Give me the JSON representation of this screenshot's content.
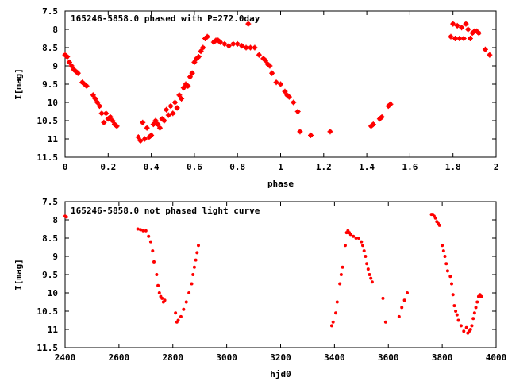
{
  "chart_data": [
    {
      "type": "scatter",
      "title": "165246-5858.0 phased with P=272.0day",
      "xlabel": "phase",
      "ylabel": "I[mag]",
      "xlim": [
        0,
        2
      ],
      "ylim": [
        11.5,
        7.5
      ],
      "y_inverted": true,
      "x_ticks": [
        0,
        0.2,
        0.4,
        0.6,
        0.8,
        1,
        1.2,
        1.4,
        1.6,
        1.8,
        2
      ],
      "y_ticks": [
        7.5,
        8,
        8.5,
        9,
        9.5,
        10,
        10.5,
        11,
        11.5
      ],
      "grid": false,
      "marker_color": "#ff0000",
      "marker": "filled-circle-cross",
      "series": [
        {
          "x": [
            0.0,
            0.01,
            0.02,
            0.03,
            0.04,
            0.05,
            0.06,
            0.08,
            0.09,
            0.1,
            0.13,
            0.14,
            0.15,
            0.16,
            0.17,
            0.18,
            0.19,
            0.2,
            0.21,
            0.22,
            0.23,
            0.24,
            0.34,
            0.35,
            0.36,
            0.37,
            0.38,
            0.39,
            0.4,
            0.41,
            0.42,
            0.43,
            0.44,
            0.45,
            0.46,
            0.47,
            0.48,
            0.49,
            0.5,
            0.51,
            0.52,
            0.53,
            0.54,
            0.55,
            0.56,
            0.57,
            0.58,
            0.59,
            0.6,
            0.61,
            0.62,
            0.63,
            0.64,
            0.65,
            0.66,
            0.69,
            0.7,
            0.71,
            0.72,
            0.74,
            0.76,
            0.78,
            0.8,
            0.82,
            0.84,
            0.85,
            0.86,
            0.88,
            0.9,
            0.92,
            0.93,
            0.94,
            0.95,
            0.96,
            0.98,
            1.0,
            1.02,
            1.03,
            1.04,
            1.06,
            1.08,
            1.09,
            1.14,
            1.23,
            1.42,
            1.43,
            1.46,
            1.47,
            1.5,
            1.51,
            1.79,
            1.8,
            1.81,
            1.82,
            1.83,
            1.84,
            1.85,
            1.86,
            1.87,
            1.88,
            1.89,
            1.9,
            1.91,
            1.92,
            1.95,
            1.97
          ],
          "y": [
            8.7,
            8.75,
            8.9,
            9.0,
            9.1,
            9.15,
            9.2,
            9.45,
            9.5,
            9.55,
            9.8,
            9.9,
            10.0,
            10.1,
            10.3,
            10.55,
            10.3,
            10.45,
            10.4,
            10.5,
            10.6,
            10.65,
            10.95,
            11.05,
            10.55,
            11.0,
            10.7,
            10.95,
            10.9,
            10.6,
            10.5,
            10.6,
            10.7,
            10.45,
            10.5,
            10.2,
            10.35,
            10.1,
            10.3,
            10.0,
            10.15,
            9.8,
            9.9,
            9.6,
            9.5,
            9.55,
            9.3,
            9.2,
            8.9,
            8.8,
            8.75,
            8.6,
            8.5,
            8.25,
            8.2,
            8.35,
            8.3,
            8.3,
            8.35,
            8.4,
            8.45,
            8.4,
            8.4,
            8.45,
            8.5,
            7.85,
            8.5,
            8.5,
            8.7,
            8.8,
            8.85,
            8.95,
            9.0,
            9.2,
            9.45,
            9.5,
            9.7,
            9.8,
            9.85,
            10.0,
            10.25,
            10.8,
            10.9,
            10.8,
            10.65,
            10.6,
            10.45,
            10.4,
            10.1,
            10.05,
            8.2,
            7.85,
            8.25,
            7.9,
            8.25,
            7.95,
            8.25,
            7.85,
            8.0,
            8.25,
            8.1,
            8.05,
            8.05,
            8.1,
            8.55,
            8.7
          ]
        }
      ]
    },
    {
      "type": "scatter",
      "title": "165246-5858.0 not phased light curve",
      "xlabel": "hjd0",
      "ylabel": "I[mag]",
      "xlim": [
        2400,
        4000
      ],
      "ylim": [
        11.5,
        7.5
      ],
      "y_inverted": true,
      "x_ticks": [
        2400,
        2600,
        2800,
        3000,
        3200,
        3400,
        3600,
        3800,
        4000
      ],
      "y_ticks": [
        7.5,
        8,
        8.5,
        9,
        9.5,
        10,
        10.5,
        11,
        11.5
      ],
      "grid": false,
      "marker_color": "#ff0000",
      "marker": "filled-circle",
      "series": [
        {
          "x": [
            2400,
            2405,
            2670,
            2680,
            2690,
            2700,
            2710,
            2718,
            2725,
            2730,
            2740,
            2745,
            2750,
            2755,
            2760,
            2765,
            2770,
            2810,
            2815,
            2820,
            2830,
            2840,
            2850,
            2860,
            2870,
            2875,
            2880,
            2885,
            2890,
            2895,
            3390,
            3395,
            3405,
            3410,
            3420,
            3425,
            3430,
            3440,
            3445,
            3450,
            3455,
            3460,
            3470,
            3480,
            3490,
            3500,
            3505,
            3510,
            3515,
            3520,
            3525,
            3530,
            3535,
            3540,
            3580,
            3590,
            3640,
            3650,
            3660,
            3670,
            3760,
            3765,
            3770,
            3775,
            3780,
            3785,
            3790,
            3800,
            3805,
            3810,
            3815,
            3820,
            3830,
            3835,
            3840,
            3845,
            3850,
            3855,
            3860,
            3870,
            3880,
            3890,
            3895,
            3900,
            3905,
            3910,
            3915,
            3920,
            3925,
            3930,
            3935,
            3940,
            3945
          ],
          "y": [
            7.9,
            7.92,
            8.25,
            8.27,
            8.3,
            8.3,
            8.45,
            8.6,
            8.85,
            9.15,
            9.5,
            9.8,
            10.0,
            10.1,
            10.15,
            10.25,
            10.2,
            10.55,
            10.8,
            10.75,
            10.65,
            10.45,
            10.25,
            10.0,
            9.75,
            9.5,
            9.3,
            9.1,
            8.9,
            8.7,
            10.9,
            10.8,
            10.55,
            10.25,
            9.75,
            9.5,
            9.3,
            8.7,
            8.35,
            8.3,
            8.35,
            8.4,
            8.45,
            8.5,
            8.5,
            8.6,
            8.7,
            8.85,
            9.0,
            9.2,
            9.35,
            9.5,
            9.6,
            9.7,
            10.15,
            10.8,
            10.65,
            10.4,
            10.2,
            10.0,
            7.85,
            7.85,
            7.9,
            7.95,
            8.05,
            8.1,
            8.15,
            8.7,
            8.85,
            9.0,
            9.2,
            9.4,
            9.55,
            9.75,
            10.05,
            10.35,
            10.5,
            10.6,
            10.75,
            10.9,
            11.05,
            10.95,
            11.1,
            11.05,
            11.0,
            10.9,
            10.7,
            10.55,
            10.4,
            10.25,
            10.1,
            10.05,
            10.1
          ]
        }
      ]
    }
  ]
}
